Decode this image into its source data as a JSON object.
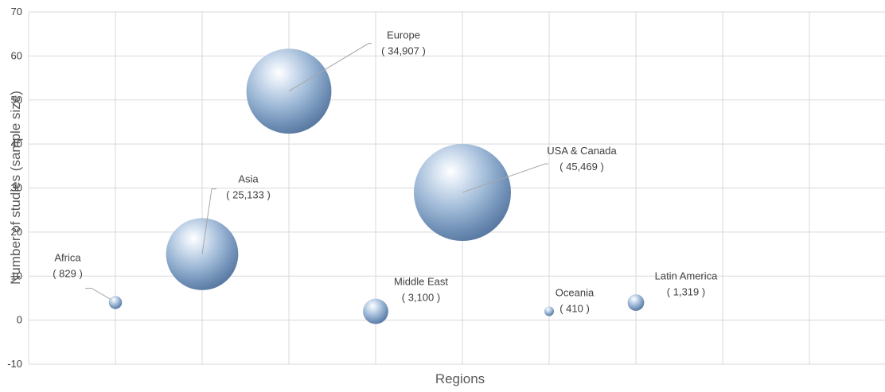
{
  "chart_data": {
    "type": "bubble",
    "title": "",
    "xlabel": "Regions",
    "ylabel": "Number of studies  (sample size)",
    "ylim": [
      -10,
      70
    ],
    "yticks": [
      -10,
      0,
      10,
      20,
      30,
      40,
      50,
      60,
      70
    ],
    "xlim": [
      0,
      9
    ],
    "grid": true,
    "legend": "none",
    "bubble_color": "#9db8d6",
    "points": [
      {
        "region": "Africa",
        "sample": "( 829 )",
        "x": 1,
        "y": 4,
        "size": 829
      },
      {
        "region": "Asia",
        "sample": "( 25,133 )",
        "x": 2,
        "y": 15,
        "size": 25133
      },
      {
        "region": "Europe",
        "sample": "( 34,907 )",
        "x": 3,
        "y": 52,
        "size": 34907
      },
      {
        "region": "Middle East",
        "sample": "( 3,100 )",
        "x": 4,
        "y": 2,
        "size": 3100
      },
      {
        "region": "USA & Canada",
        "sample": "( 45,469 )",
        "x": 5,
        "y": 29,
        "size": 45469
      },
      {
        "region": "Oceania",
        "sample": "( 410 )",
        "x": 6,
        "y": 2,
        "size": 410
      },
      {
        "region": "Latin America",
        "sample": "( 1,319 )",
        "x": 7,
        "y": 4,
        "size": 1319
      }
    ]
  }
}
